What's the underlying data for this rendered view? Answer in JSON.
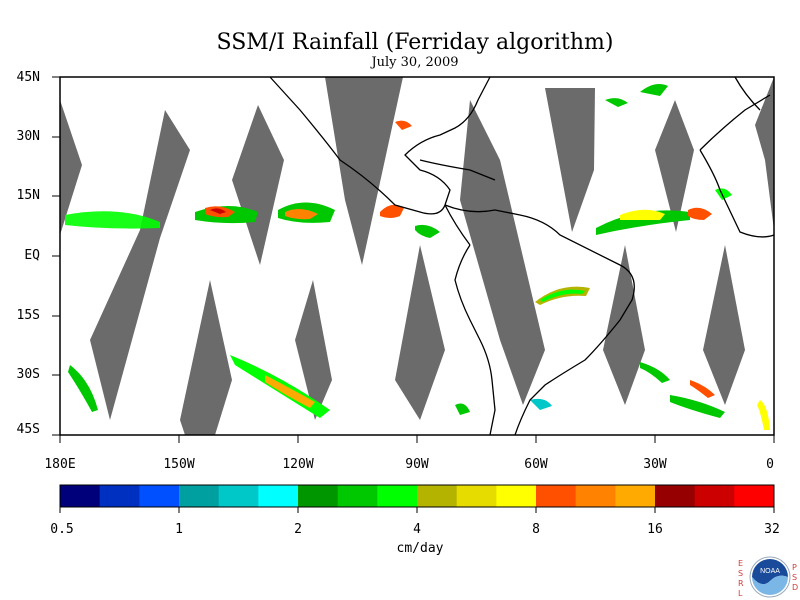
{
  "title": "SSM/I Rainfall (Ferriday algorithm)",
  "date": "July 30, 2009",
  "map": {
    "lon_range": [
      -180,
      0
    ],
    "lat_range": [
      -45,
      45
    ],
    "lat_ticks": [
      {
        "value": 45,
        "label": "45N"
      },
      {
        "value": 30,
        "label": "30N"
      },
      {
        "value": 15,
        "label": "15N"
      },
      {
        "value": 0,
        "label": "EQ"
      },
      {
        "value": -15,
        "label": "15S"
      },
      {
        "value": -30,
        "label": "30S"
      },
      {
        "value": -45,
        "label": "45S"
      }
    ],
    "lon_ticks": [
      {
        "value": -180,
        "label": "180E"
      },
      {
        "value": -150,
        "label": "150W"
      },
      {
        "value": -120,
        "label": "120W"
      },
      {
        "value": -90,
        "label": "90W"
      },
      {
        "value": -60,
        "label": "60W"
      },
      {
        "value": -30,
        "label": "30W"
      },
      {
        "value": 0,
        "label": "0"
      }
    ],
    "swath_gap_color": "#6b6b6b",
    "land_outline_color": "#000000"
  },
  "colorbar": {
    "units": "cm/day",
    "colors": [
      "#00007a",
      "#0030c0",
      "#0050ff",
      "#00a0a0",
      "#00c8c8",
      "#00ffff",
      "#009600",
      "#00c800",
      "#00ff00",
      "#b4b400",
      "#e6dc00",
      "#ffff00",
      "#ff5000",
      "#ff8200",
      "#ffaa00",
      "#960000",
      "#cd0000",
      "#ff0000"
    ],
    "tick_labels": [
      "0.5",
      "1",
      "2",
      "4",
      "8",
      "16",
      "32"
    ]
  },
  "logo": {
    "name": "NOAA",
    "left_letters": [
      "E",
      "S",
      "R",
      "L"
    ],
    "right_letters": [
      "P",
      "S",
      "D"
    ]
  }
}
